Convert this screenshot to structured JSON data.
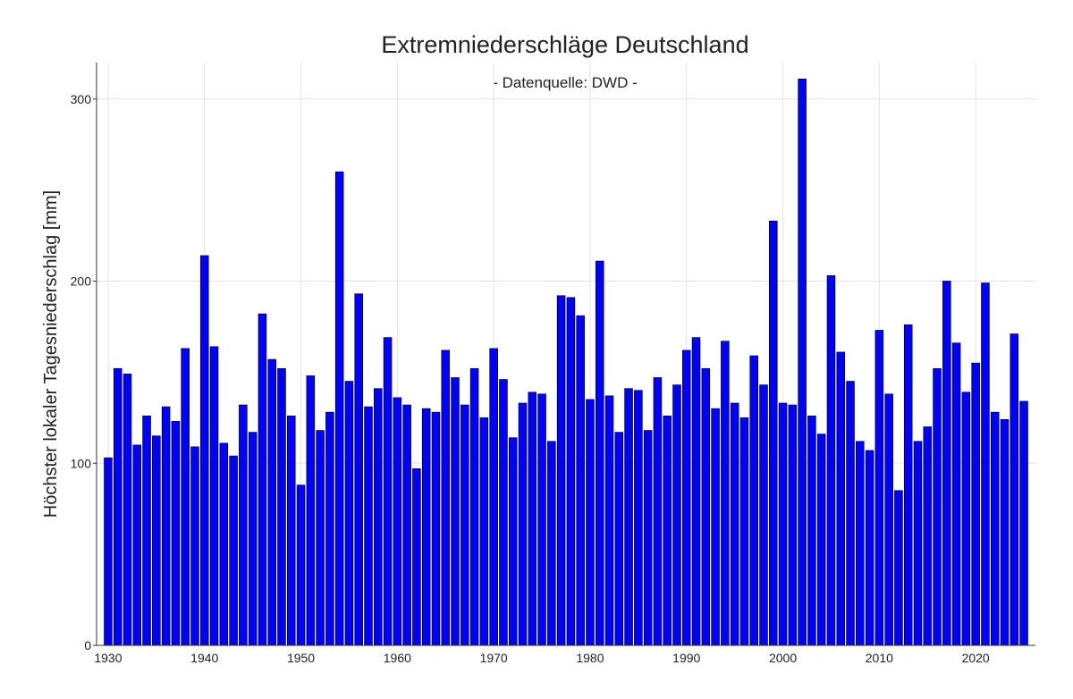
{
  "chart_data": {
    "type": "bar",
    "title": "Extremniederschläge Deutschland",
    "subtitle": "- Datenquelle: DWD -",
    "xlabel": "",
    "ylabel": "Höchster lokaler Tagesniederschlag [mm]",
    "ylim": [
      0,
      320
    ],
    "xlim": [
      1928.8,
      1926.2
    ],
    "x_ticks": [
      1930,
      1940,
      1950,
      1960,
      1970,
      1980,
      1990,
      2000,
      2010,
      2020
    ],
    "y_ticks": [
      0,
      100,
      200,
      300
    ],
    "grid": true,
    "bar_color": "#0000ff",
    "x": [
      1930,
      1931,
      1932,
      1933,
      1934,
      1935,
      1936,
      1937,
      1938,
      1939,
      1940,
      1941,
      1942,
      1943,
      1944,
      1945,
      1946,
      1947,
      1948,
      1949,
      1950,
      1951,
      1952,
      1953,
      1954,
      1955,
      1956,
      1957,
      1958,
      1959,
      1960,
      1961,
      1962,
      1963,
      1964,
      1965,
      1966,
      1967,
      1968,
      1969,
      1970,
      1971,
      1972,
      1973,
      1974,
      1975,
      1976,
      1977,
      1978,
      1979,
      1980,
      1981,
      1982,
      1983,
      1984,
      1985,
      1986,
      1987,
      1988,
      1989,
      1990,
      1991,
      1992,
      1993,
      1994,
      1995,
      1996,
      1997,
      1998,
      1999,
      2000,
      2001,
      2002,
      2003,
      2004,
      2005,
      2006,
      2007,
      2008,
      2009,
      2010,
      2011,
      2012,
      2013,
      2014,
      2015,
      2016,
      2017,
      2018,
      2019,
      2020,
      2021,
      2022,
      2023,
      2024,
      2025
    ],
    "values": [
      103,
      152,
      149,
      110,
      126,
      115,
      131,
      123,
      163,
      109,
      214,
      164,
      111,
      104,
      132,
      117,
      182,
      157,
      152,
      126,
      88,
      148,
      118,
      128,
      260,
      145,
      193,
      131,
      141,
      169,
      136,
      132,
      97,
      130,
      128,
      162,
      147,
      132,
      152,
      125,
      163,
      146,
      114,
      133,
      139,
      138,
      112,
      192,
      191,
      181,
      135,
      211,
      137,
      117,
      141,
      140,
      118,
      147,
      126,
      143,
      162,
      169,
      152,
      130,
      167,
      133,
      125,
      159,
      143,
      233,
      133,
      132,
      311,
      126,
      116,
      203,
      161,
      145,
      112,
      107,
      173,
      138,
      85,
      176,
      112,
      120,
      152,
      200,
      166,
      139,
      155,
      199,
      128,
      124,
      171,
      134
    ]
  }
}
